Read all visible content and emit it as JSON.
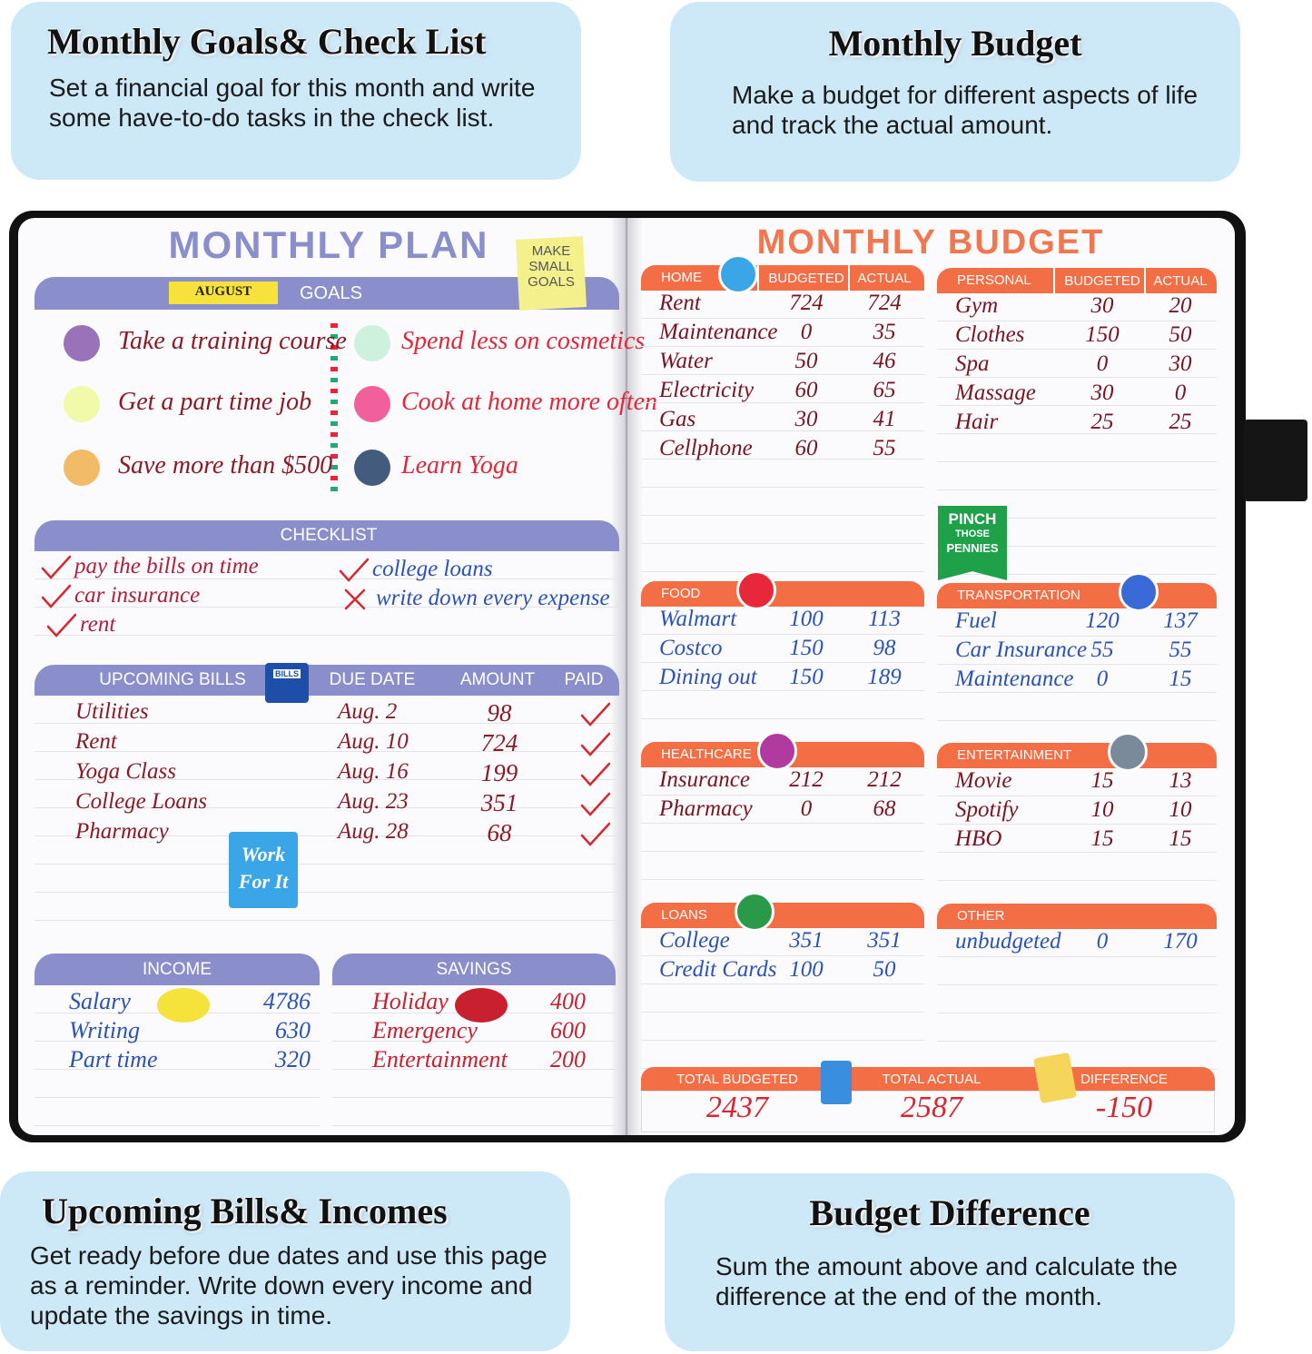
{
  "callouts": [
    {
      "title": "Monthly Goals& Check List",
      "text": "Set a financial goal for this month and write some have-to-do tasks in the check list."
    },
    {
      "title": "Monthly Budget",
      "text": "Make a budget for different aspects of life and track the actual amount."
    },
    {
      "title": "Upcoming Bills& Incomes",
      "text": "Get ready before due dates and use this page as a reminder. Write down every income and update the savings in time."
    },
    {
      "title": "Budget Difference",
      "text": "Sum the amount above and calculate the difference at the end of the month."
    }
  ],
  "monthly_plan": {
    "title": "MONTHLY PLAN",
    "note": "MAKE SMALL GOALS",
    "month": "AUGUST",
    "goals_header": "GOALS",
    "goals": [
      {
        "text": "Take a training course",
        "dot": "#8e63b3"
      },
      {
        "text": "Get a part time job",
        "dot": "#eefaa0"
      },
      {
        "text": "Save more than $500",
        "dot": "#f0b458"
      },
      {
        "text": "Spend less on cosmetics",
        "dot": "#c8efd8"
      },
      {
        "text": "Cook at home more often",
        "dot": "#ef4f8f"
      },
      {
        "text": "Learn Yoga",
        "dot": "#2f4a6f"
      }
    ],
    "checklist_header": "CHECKLIST",
    "checklist": [
      {
        "text": "pay the bills on time",
        "done": true
      },
      {
        "text": "car insurance",
        "done": true
      },
      {
        "text": "rent",
        "done": true
      },
      {
        "text": "college loans",
        "done": true
      },
      {
        "text": "write down every expense",
        "done": false
      }
    ],
    "bills_headers": [
      "UPCOMING BILLS",
      "DUE DATE",
      "AMOUNT",
      "PAID"
    ],
    "bills_sticker": "BILLS",
    "bills": [
      [
        "Utilities",
        "Aug. 2",
        "98"
      ],
      [
        "Rent",
        "Aug. 10",
        "724"
      ],
      [
        "Yoga Class",
        "Aug. 16",
        "199"
      ],
      [
        "College Loans",
        "Aug. 23",
        "351"
      ],
      [
        "Pharmacy",
        "Aug. 28",
        "68"
      ]
    ],
    "stamp": "Work For It",
    "income_header": "INCOME",
    "income": [
      [
        "Salary",
        "4786"
      ],
      [
        "Writing",
        "630"
      ],
      [
        "Part time",
        "320"
      ]
    ],
    "savings_header": "SAVINGS",
    "savings": [
      [
        "Holiday",
        "400"
      ],
      [
        "Emergency",
        "600"
      ],
      [
        "Entertainment",
        "200"
      ]
    ]
  },
  "monthly_budget": {
    "title": "MONTHLY BUDGET",
    "sections": [
      {
        "name": "HOME",
        "columns": [
          "BUDGETED",
          "ACTUAL"
        ],
        "rows": [
          [
            "Rent",
            "724",
            "724"
          ],
          [
            "Maintenance",
            "0",
            "35"
          ],
          [
            "Water",
            "50",
            "46"
          ],
          [
            "Electricity",
            "60",
            "65"
          ],
          [
            "Gas",
            "30",
            "41"
          ],
          [
            "Cellphone",
            "60",
            "55"
          ]
        ]
      },
      {
        "name": "PERSONAL",
        "columns": [
          "BUDGETED",
          "ACTUAL"
        ],
        "rows": [
          [
            "Gym",
            "30",
            "20"
          ],
          [
            "Clothes",
            "150",
            "50"
          ],
          [
            "Spa",
            "0",
            "30"
          ],
          [
            "Massage",
            "30",
            "0"
          ],
          [
            "Hair",
            "25",
            "25"
          ]
        ]
      },
      {
        "name": "FOOD",
        "rows": [
          [
            "Walmart",
            "100",
            "113"
          ],
          [
            "Costco",
            "150",
            "98"
          ],
          [
            "Dining out",
            "150",
            "189"
          ]
        ]
      },
      {
        "name": "TRANSPORTATION",
        "rows": [
          [
            "Fuel",
            "120",
            "137"
          ],
          [
            "Car Insurance",
            "55",
            "55"
          ],
          [
            "Maintenance",
            "0",
            "15"
          ]
        ]
      },
      {
        "name": "HEALTHCARE",
        "rows": [
          [
            "Insurance",
            "212",
            "212"
          ],
          [
            "Pharmacy",
            "0",
            "68"
          ]
        ]
      },
      {
        "name": "ENTERTAINMENT",
        "rows": [
          [
            "Movie",
            "15",
            "13"
          ],
          [
            "Spotify",
            "10",
            "10"
          ],
          [
            "HBO",
            "15",
            "15"
          ]
        ]
      },
      {
        "name": "LOANS",
        "rows": [
          [
            "College",
            "351",
            "351"
          ],
          [
            "Credit Cards",
            "100",
            "50"
          ]
        ]
      },
      {
        "name": "OTHER",
        "rows": [
          [
            "unbudgeted",
            "0",
            "170"
          ]
        ]
      }
    ],
    "badge": [
      "PINCH",
      "THOSE",
      "PENNIES"
    ],
    "totals": [
      [
        "TOTAL BUDGETED",
        "2437"
      ],
      [
        "TOTAL ACTUAL",
        "2587"
      ],
      [
        "DIFFERENCE",
        "-150"
      ]
    ]
  }
}
